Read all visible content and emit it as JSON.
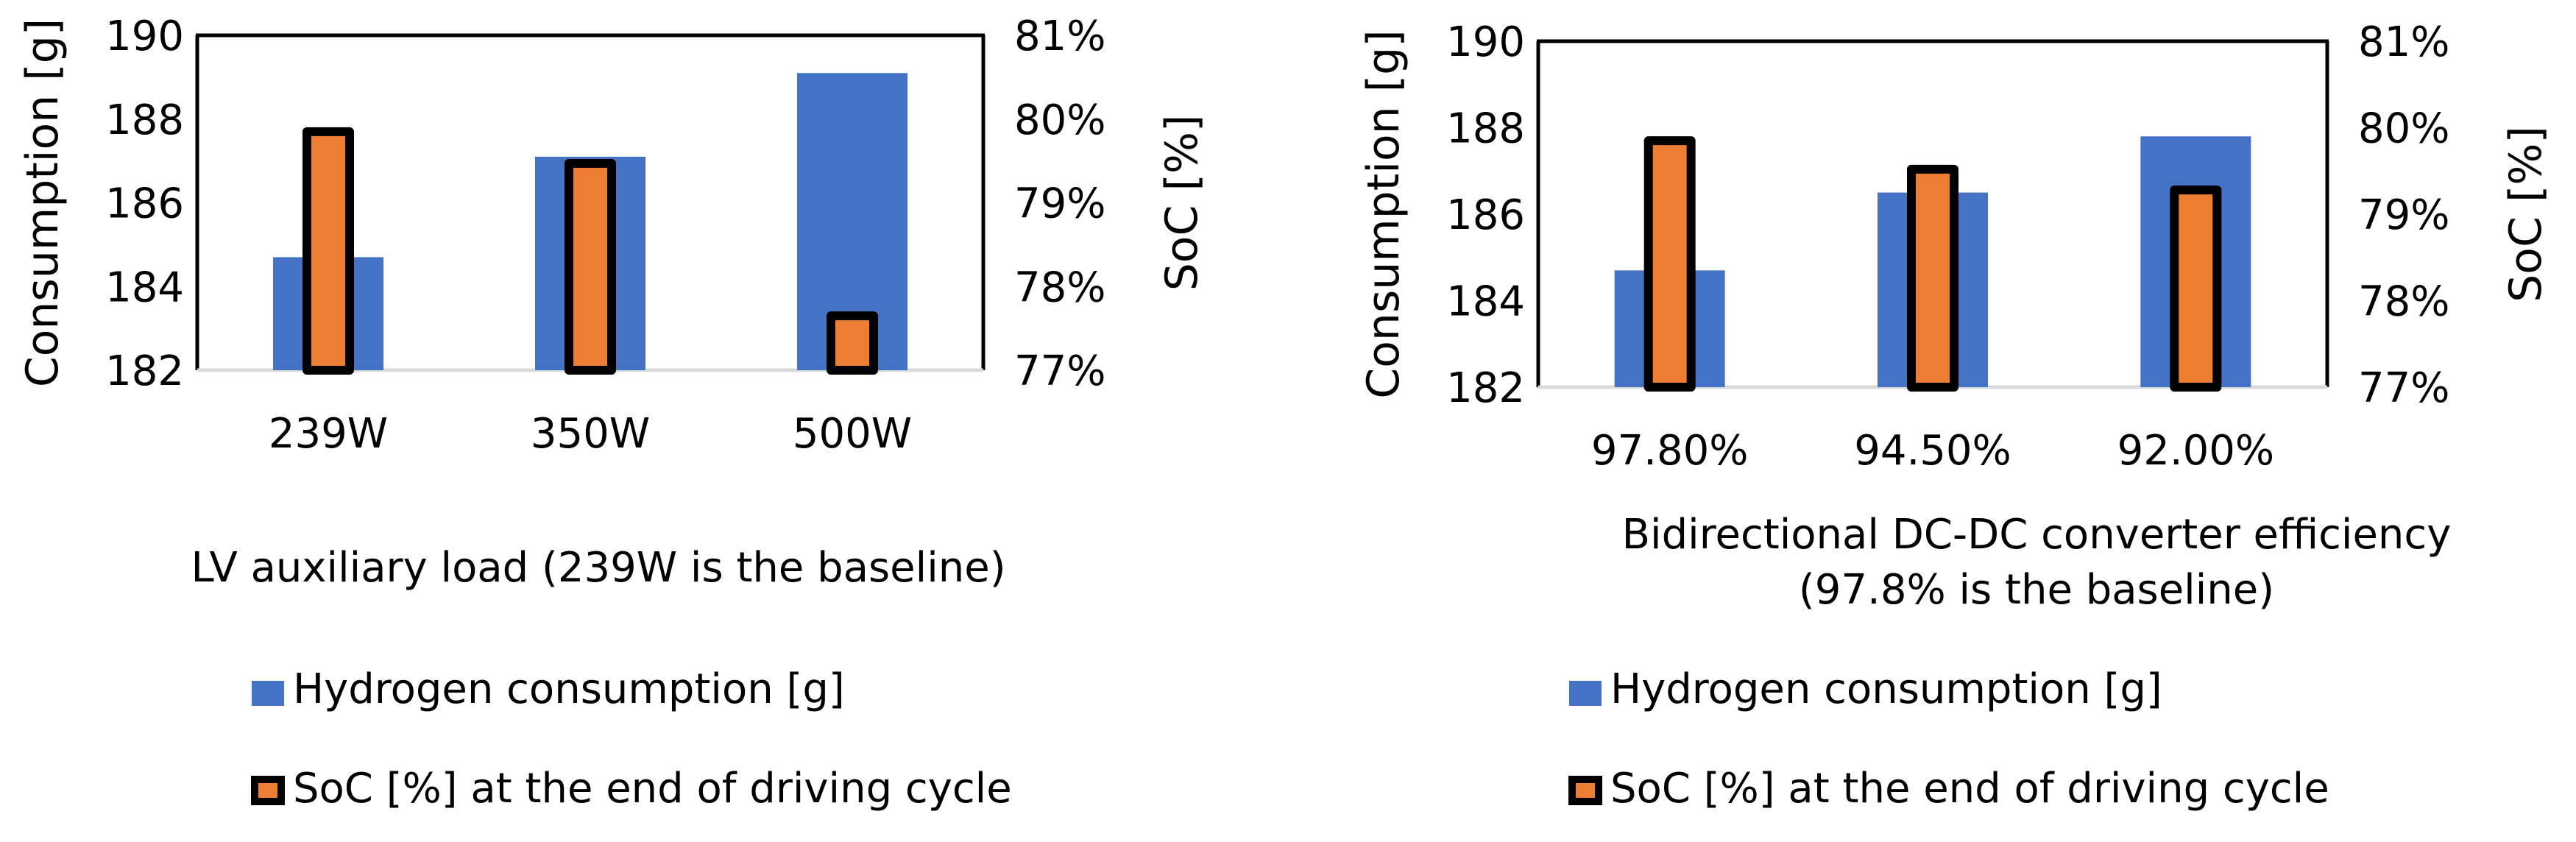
{
  "colors": {
    "consumption": "#4472C4",
    "soc": "#ED7D31",
    "soc_border": "#000000",
    "axis": "#000000",
    "baseline": "#D9D9D9"
  },
  "chart_data": [
    {
      "type": "bar",
      "categories": [
        "239W",
        "350W",
        "500W"
      ],
      "series": [
        {
          "name": "Hydrogen consumption [g]",
          "axis": "left",
          "values": [
            184.7,
            187.1,
            189.1
          ]
        },
        {
          "name": "SoC [%] at the end of driving cycle",
          "axis": "right",
          "values": [
            79.85,
            79.47,
            77.65
          ]
        }
      ],
      "ylabel": "Consumption [g]",
      "ylim": [
        182,
        190
      ],
      "yticks": [
        "182",
        "184",
        "186",
        "188",
        "190"
      ],
      "y2label": "SoC [%]",
      "y2lim": [
        77,
        81
      ],
      "y2ticks": [
        "77%",
        "78%",
        "79%",
        "80%",
        "81%"
      ],
      "xlabel_lines": [
        "LV auxiliary load (239W is the baseline)"
      ],
      "legend_position": "bottom"
    },
    {
      "type": "bar",
      "categories": [
        "97.80%",
        "94.50%",
        "92.00%"
      ],
      "series": [
        {
          "name": "Hydrogen consumption [g]",
          "axis": "left",
          "values": [
            184.7,
            186.5,
            187.8
          ]
        },
        {
          "name": "SoC [%] at the end of driving cycle",
          "axis": "right",
          "values": [
            79.85,
            79.52,
            79.28
          ]
        }
      ],
      "ylabel": "Consumption [g]",
      "ylim": [
        182,
        190
      ],
      "yticks": [
        "182",
        "184",
        "186",
        "188",
        "190"
      ],
      "y2label": "SoC [%]",
      "y2lim": [
        77,
        81
      ],
      "y2ticks": [
        "77%",
        "78%",
        "79%",
        "80%",
        "81%"
      ],
      "xlabel_lines": [
        "Bidirectional DC-DC converter efficiency",
        "(97.8% is the baseline)"
      ],
      "legend_position": "bottom"
    }
  ]
}
